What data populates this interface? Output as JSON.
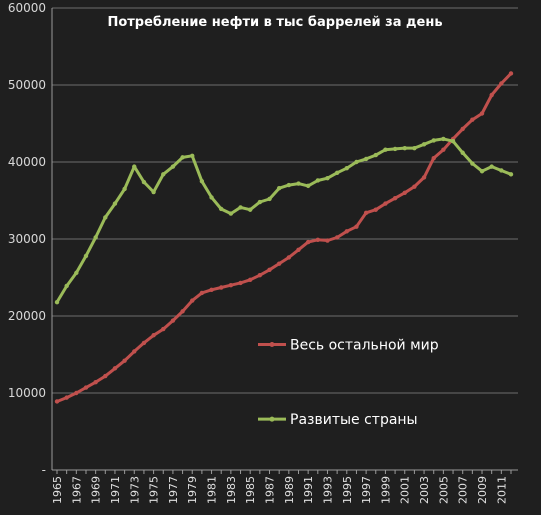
{
  "colors": {
    "background": "#1f1f1f",
    "grid": "#6e6e6e",
    "series_rest": "#c0504d",
    "series_developed": "#9bbb59",
    "text": "#ffffff"
  },
  "chart_data": {
    "type": "line",
    "title": "Потребление нефти в тыс баррелей за день",
    "xlabel": "",
    "ylabel": "",
    "ylim": [
      0,
      60000
    ],
    "y_ticks": [
      "-",
      "10000",
      "20000",
      "30000",
      "40000",
      "50000",
      "60000"
    ],
    "grid": "horizontal",
    "legend_position": "inside-right",
    "x": [
      1965,
      1966,
      1967,
      1968,
      1969,
      1970,
      1971,
      1972,
      1973,
      1974,
      1975,
      1976,
      1977,
      1978,
      1979,
      1980,
      1981,
      1982,
      1983,
      1984,
      1985,
      1986,
      1987,
      1988,
      1989,
      1990,
      1991,
      1992,
      1993,
      1994,
      1995,
      1996,
      1997,
      1998,
      1999,
      2000,
      2001,
      2002,
      2003,
      2004,
      2005,
      2006,
      2007,
      2008,
      2009,
      2010,
      2011,
      2012
    ],
    "x_tick_labels": [
      "1965",
      "1967",
      "1969",
      "1971",
      "1973",
      "1975",
      "1977",
      "1979",
      "1981",
      "1983",
      "1985",
      "1987",
      "1989",
      "1991",
      "1993",
      "1995",
      "1997",
      "1999",
      "2001",
      "2003",
      "2005",
      "2007",
      "2009",
      "2011"
    ],
    "series": [
      {
        "name": "Весь остальной мир",
        "color": "#c0504d",
        "values": [
          8900,
          9400,
          10000,
          10700,
          11400,
          12200,
          13200,
          14200,
          15400,
          16500,
          17500,
          18300,
          19400,
          20600,
          22000,
          23000,
          23400,
          23700,
          24000,
          24300,
          24700,
          25300,
          26000,
          26800,
          27600,
          28600,
          29600,
          29900,
          29800,
          30200,
          31000,
          31600,
          33400,
          33800,
          34600,
          35300,
          36000,
          36800,
          38000,
          40500,
          41600,
          43000,
          44300,
          45500,
          46300,
          48700,
          50200,
          51500
        ]
      },
      {
        "name": "Развитые страны",
        "color": "#9bbb59",
        "values": [
          21800,
          23900,
          25600,
          27800,
          30200,
          32800,
          34600,
          36500,
          39400,
          37400,
          36100,
          38400,
          39400,
          40600,
          40800,
          37500,
          35400,
          33900,
          33300,
          34100,
          33800,
          34800,
          35200,
          36600,
          37000,
          37200,
          36900,
          37600,
          37900,
          38600,
          39200,
          40000,
          40400,
          40900,
          41600,
          41700,
          41800,
          41800,
          42300,
          42800,
          43000,
          42700,
          41200,
          39800,
          38800,
          39400,
          38900,
          38400
        ]
      }
    ]
  }
}
